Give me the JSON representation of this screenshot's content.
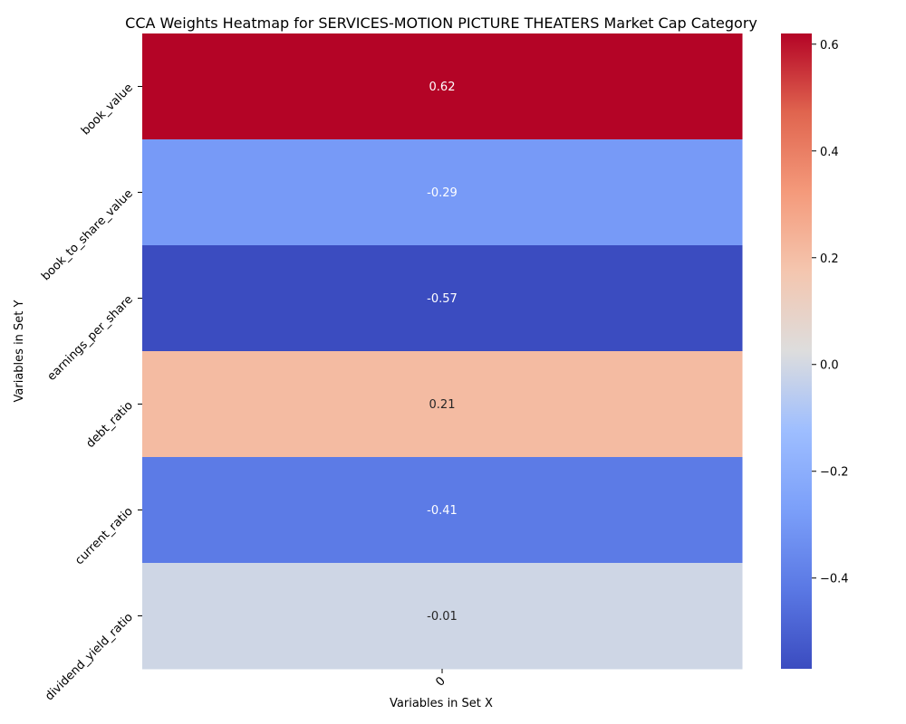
{
  "chart_data": {
    "type": "heatmap",
    "title": "CCA Weights Heatmap for SERVICES-MOTION PICTURE THEATERS Market Cap Category",
    "xlabel": "Variables in Set X",
    "ylabel": "Variables in Set Y",
    "x_categories": [
      "0"
    ],
    "y_categories": [
      "book_value",
      "book_to_share_value",
      "earnings_per_share",
      "debt_ratio",
      "current_ratio",
      "dividend_yield_ratio"
    ],
    "values": [
      [
        0.62
      ],
      [
        -0.29
      ],
      [
        -0.57
      ],
      [
        0.21
      ],
      [
        -0.41
      ],
      [
        -0.01
      ]
    ],
    "annotations": [
      "0.62",
      "-0.29",
      "-0.57",
      "0.21",
      "-0.41",
      "-0.01"
    ],
    "colormap": "coolwarm",
    "colorbar": {
      "vmin": -0.57,
      "vmax": 0.62,
      "ticks": [
        -0.4,
        -0.2,
        0.0,
        0.2,
        0.4,
        0.6
      ],
      "tick_labels": [
        "−0.4",
        "−0.2",
        "0.0",
        "0.2",
        "0.4",
        "0.6"
      ]
    }
  }
}
